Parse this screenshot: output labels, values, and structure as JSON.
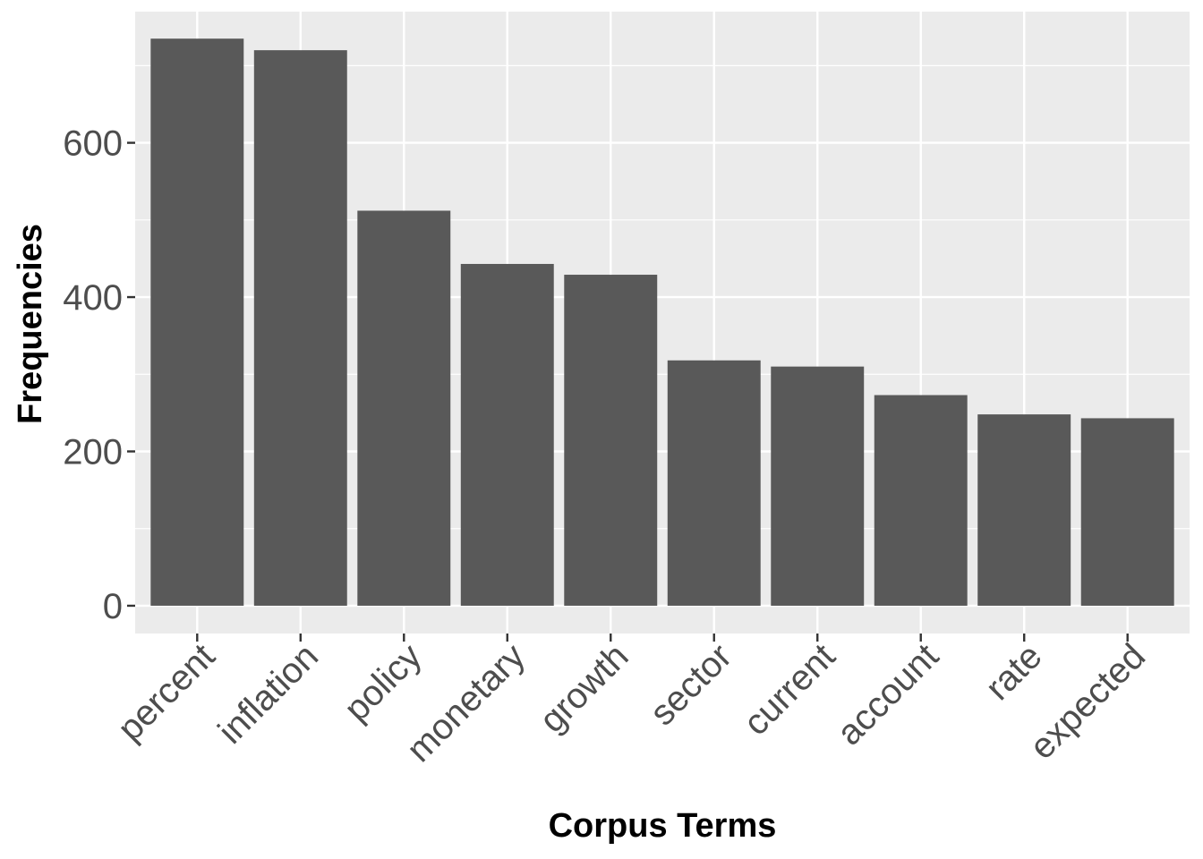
{
  "chart_data": {
    "type": "bar",
    "title": "",
    "xlabel": "Corpus Terms",
    "ylabel": "Frequencies",
    "categories": [
      "percent",
      "inflation",
      "policy",
      "monetary",
      "growth",
      "sector",
      "current",
      "account",
      "rate",
      "expected"
    ],
    "values": [
      735,
      720,
      512,
      443,
      429,
      318,
      310,
      273,
      248,
      243
    ],
    "ylim": [
      -36,
      770
    ],
    "yticks": [
      0,
      200,
      400,
      600
    ],
    "yticks_minor": [
      100,
      300,
      500,
      700
    ],
    "grid": true,
    "legend": "none",
    "colors": {
      "panel": "#ebebeb",
      "bar": "#595959",
      "grid": "#ffffff",
      "tick": "#333333"
    }
  }
}
